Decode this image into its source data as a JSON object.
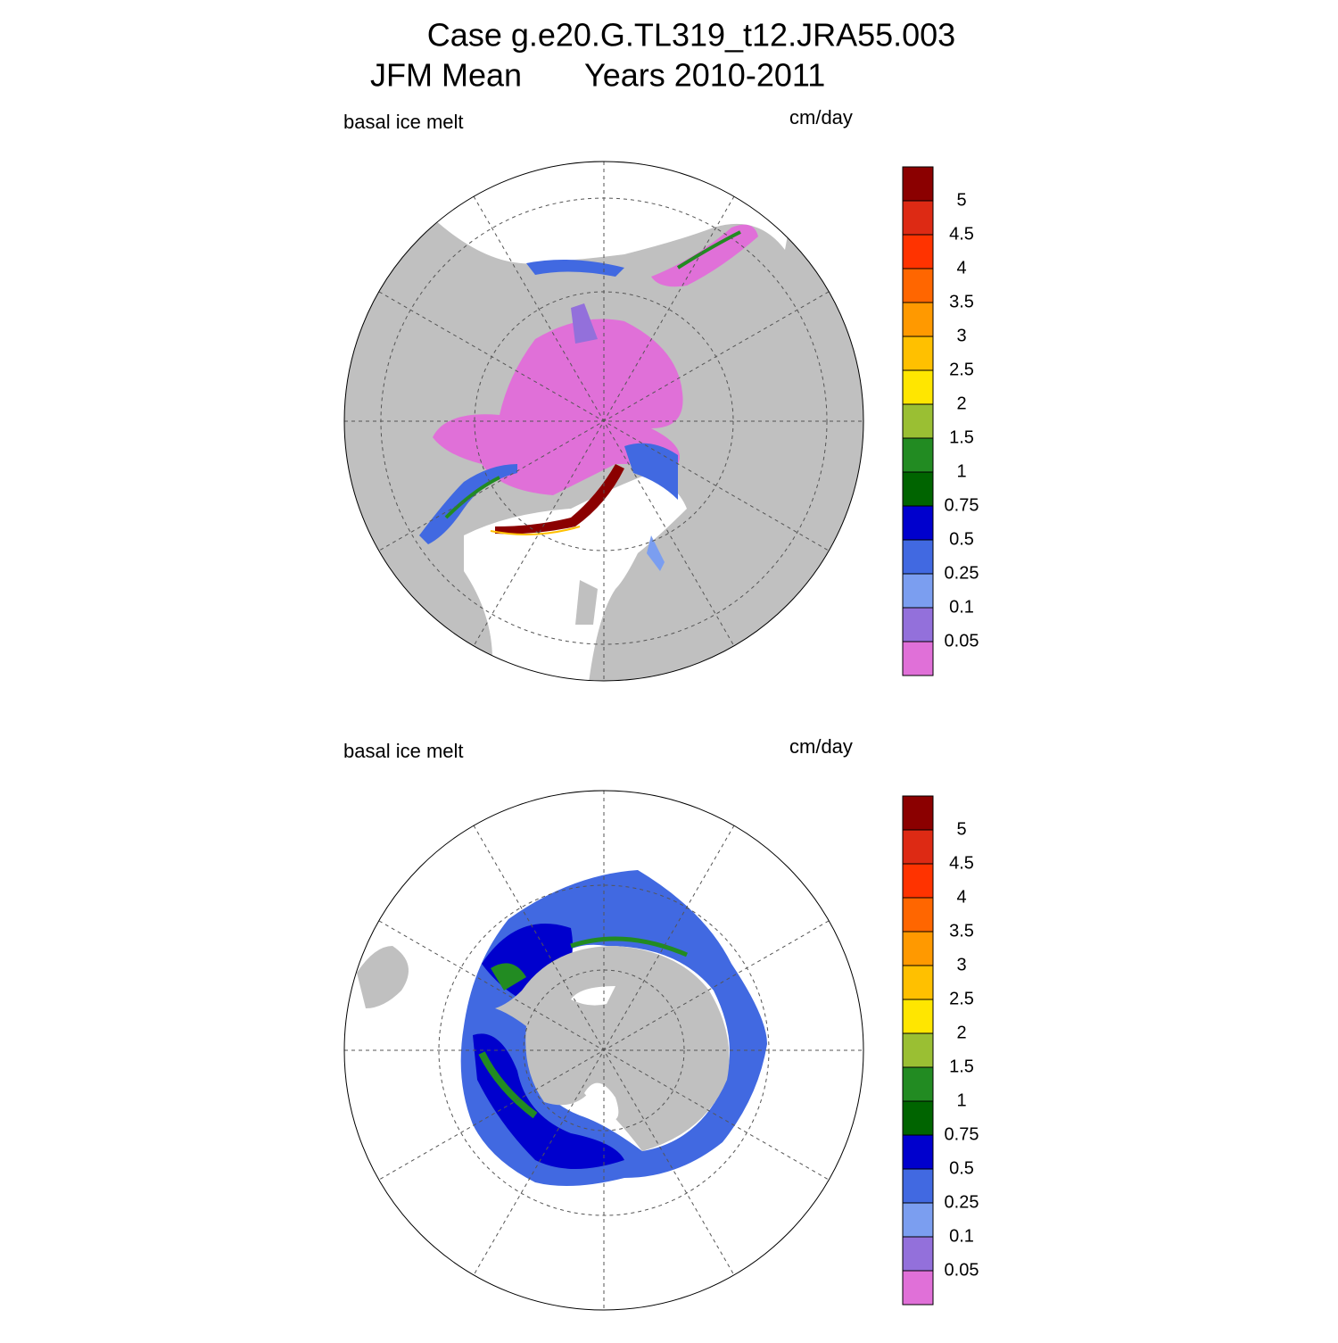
{
  "title": "Case g.e20.G.TL319_t12.JRA55.003",
  "subtitle_left": "JFM Mean",
  "subtitle_right": "Years 2010-2011",
  "panels": [
    {
      "label": "basal ice melt",
      "units": "cm/day"
    },
    {
      "label": "basal ice melt",
      "units": "cm/day"
    }
  ],
  "colorbar": {
    "levels": [
      0.05,
      0.1,
      0.25,
      0.5,
      0.75,
      1,
      1.5,
      2,
      2.5,
      3,
      3.5,
      4,
      4.5,
      5
    ],
    "colors": [
      "#e070d8",
      "#9370db",
      "#7b9ef0",
      "#4169e1",
      "#0000cd",
      "#006400",
      "#228b22",
      "#9abf33",
      "#ffe600",
      "#ffc000",
      "#ff9900",
      "#ff6600",
      "#ff3300",
      "#dd2a14",
      "#8b0000"
    ]
  }
}
